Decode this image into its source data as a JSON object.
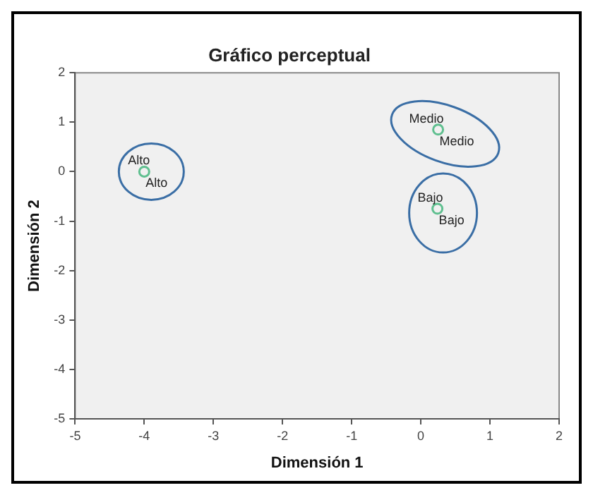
{
  "chart_data": {
    "type": "scatter",
    "title": "Gráfico perceptual",
    "xlabel": "Dimensión 1",
    "ylabel": "Dimensión 2",
    "x": [
      -4,
      0.25,
      0.24
    ],
    "series": [
      {
        "color": "#5fbf8f",
        "values": [
          0,
          0.85,
          -0.75
        ]
      }
    ],
    "marker": "circle",
    "grid": false,
    "legend": false,
    "xlim": [
      -5,
      2
    ],
    "xticks": [
      -5,
      -4,
      -3,
      -2,
      -1,
      0,
      1,
      2
    ],
    "ylim": [
      -5,
      2
    ],
    "yticks": [
      -5,
      -4,
      -3,
      -2,
      -1,
      0,
      1,
      2
    ],
    "annotations": [
      {
        "text": "Alto",
        "x": -4,
        "y": 0
      },
      {
        "text": "Alto",
        "x": -4,
        "y": 0
      },
      {
        "text": "Medio",
        "x": 0.25,
        "y": 0.85
      },
      {
        "text": "Medio",
        "x": 0.25,
        "y": 0.85
      },
      {
        "text": "Bajo",
        "x": 0.24,
        "y": -0.75
      },
      {
        "text": "Bajo",
        "x": 0.24,
        "y": -0.75
      }
    ]
  }
}
